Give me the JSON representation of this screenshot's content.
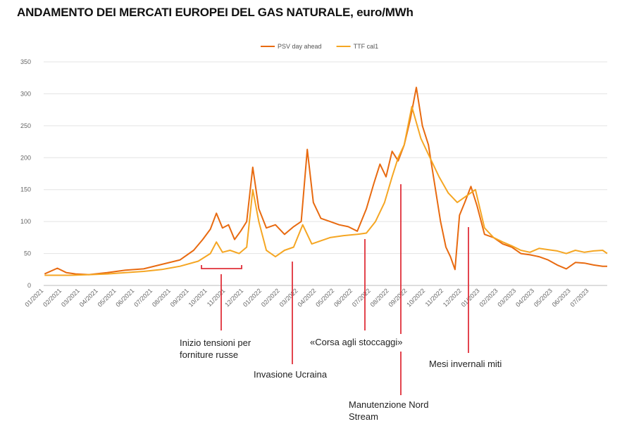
{
  "chart_data": {
    "type": "line",
    "title": "ANDAMENTO DEI MERCATI EUROPEI DEL GAS NATURALE, euro/MWh",
    "xlabel": "",
    "ylabel": "",
    "ylim": [
      0,
      350
    ],
    "yticks": [
      0,
      50,
      100,
      150,
      200,
      250,
      300,
      350
    ],
    "grid": true,
    "legend_position": "top-center",
    "x_categories": [
      "01/2021",
      "02/2021",
      "03/2021",
      "04/2021",
      "05/2021",
      "06/2021",
      "07/2021",
      "08/2021",
      "09/2021",
      "10/2021",
      "11/2021",
      "12/2021",
      "01/2022",
      "02/2022",
      "03/2022",
      "04/2022",
      "05/2022",
      "06/2022",
      "07/2022",
      "08/2022",
      "09/2022",
      "10/2022",
      "11/2022",
      "12/2022",
      "01/2023",
      "02/2023",
      "03/2023",
      "04/2023",
      "05/2023",
      "06/2023",
      "07/2023"
    ],
    "x_range": [
      "01/2021",
      "08/2023"
    ],
    "series": [
      {
        "name": "PSV day ahead",
        "color": "#e86a10",
        "points": [
          [
            "01/2021",
            18
          ],
          [
            "01/2021",
            27
          ],
          [
            "02/2021",
            20
          ],
          [
            "02/2021",
            18
          ],
          [
            "03/2021",
            17
          ],
          [
            "04/2021",
            20
          ],
          [
            "05/2021",
            24
          ],
          [
            "06/2021",
            26
          ],
          [
            "07/2021",
            33
          ],
          [
            "08/2021",
            40
          ],
          [
            "09/2021",
            55
          ],
          [
            "09/2021",
            72
          ],
          [
            "10/2021",
            88
          ],
          [
            "10/2021",
            113
          ],
          [
            "10/2021",
            90
          ],
          [
            "11/2021",
            95
          ],
          [
            "11/2021",
            72
          ],
          [
            "11/2021",
            85
          ],
          [
            "12/2021",
            100
          ],
          [
            "12/2021",
            185
          ],
          [
            "12/2021",
            120
          ],
          [
            "01/2022",
            90
          ],
          [
            "01/2022",
            95
          ],
          [
            "02/2022",
            80
          ],
          [
            "02/2022",
            92
          ],
          [
            "03/2022",
            100
          ],
          [
            "03/2022",
            213
          ],
          [
            "03/2022",
            130
          ],
          [
            "04/2022",
            105
          ],
          [
            "04/2022",
            100
          ],
          [
            "05/2022",
            95
          ],
          [
            "05/2022",
            92
          ],
          [
            "06/2022",
            85
          ],
          [
            "06/2022",
            120
          ],
          [
            "07/2022",
            160
          ],
          [
            "07/2022",
            190
          ],
          [
            "07/2022",
            170
          ],
          [
            "08/2022",
            210
          ],
          [
            "08/2022",
            195
          ],
          [
            "08/2022",
            220
          ],
          [
            "09/2022",
            260
          ],
          [
            "09/2022",
            310
          ],
          [
            "09/2022",
            250
          ],
          [
            "10/2022",
            220
          ],
          [
            "10/2022",
            160
          ],
          [
            "10/2022",
            100
          ],
          [
            "11/2022",
            60
          ],
          [
            "11/2022",
            45
          ],
          [
            "11/2022",
            25
          ],
          [
            "11/2022",
            110
          ],
          [
            "12/2022",
            130
          ],
          [
            "12/2022",
            155
          ],
          [
            "12/2022",
            125
          ],
          [
            "01/2023",
            80
          ],
          [
            "01/2023",
            75
          ],
          [
            "02/2023",
            65
          ],
          [
            "02/2023",
            60
          ],
          [
            "03/2023",
            50
          ],
          [
            "03/2023",
            48
          ],
          [
            "04/2023",
            45
          ],
          [
            "04/2023",
            40
          ],
          [
            "05/2023",
            32
          ],
          [
            "05/2023",
            26
          ],
          [
            "06/2023",
            36
          ],
          [
            "06/2023",
            35
          ],
          [
            "07/2023",
            32
          ],
          [
            "07/2023",
            30
          ],
          [
            "08/2023",
            30
          ]
        ]
      },
      {
        "name": "TTF cal1",
        "color": "#f5a623",
        "points": [
          [
            "01/2021",
            16
          ],
          [
            "02/2021",
            16
          ],
          [
            "03/2021",
            17
          ],
          [
            "04/2021",
            18
          ],
          [
            "05/2021",
            20
          ],
          [
            "06/2021",
            22
          ],
          [
            "07/2021",
            25
          ],
          [
            "08/2021",
            30
          ],
          [
            "09/2021",
            38
          ],
          [
            "10/2021",
            50
          ],
          [
            "10/2021",
            68
          ],
          [
            "10/2021",
            52
          ],
          [
            "11/2021",
            55
          ],
          [
            "11/2021",
            50
          ],
          [
            "12/2021",
            60
          ],
          [
            "12/2021",
            150
          ],
          [
            "12/2021",
            100
          ],
          [
            "01/2022",
            55
          ],
          [
            "01/2022",
            45
          ],
          [
            "02/2022",
            55
          ],
          [
            "02/2022",
            60
          ],
          [
            "03/2022",
            95
          ],
          [
            "03/2022",
            65
          ],
          [
            "04/2022",
            70
          ],
          [
            "04/2022",
            75
          ],
          [
            "05/2022",
            78
          ],
          [
            "06/2022",
            80
          ],
          [
            "06/2022",
            82
          ],
          [
            "07/2022",
            100
          ],
          [
            "07/2022",
            130
          ],
          [
            "08/2022",
            170
          ],
          [
            "08/2022",
            200
          ],
          [
            "08/2022",
            220
          ],
          [
            "09/2022",
            280
          ],
          [
            "09/2022",
            230
          ],
          [
            "10/2022",
            200
          ],
          [
            "10/2022",
            170
          ],
          [
            "11/2022",
            145
          ],
          [
            "11/2022",
            130
          ],
          [
            "12/2022",
            140
          ],
          [
            "12/2022",
            150
          ],
          [
            "01/2023",
            90
          ],
          [
            "01/2023",
            75
          ],
          [
            "02/2023",
            68
          ],
          [
            "02/2023",
            62
          ],
          [
            "03/2023",
            55
          ],
          [
            "03/2023",
            52
          ],
          [
            "04/2023",
            58
          ],
          [
            "04/2023",
            56
          ],
          [
            "05/2023",
            54
          ],
          [
            "05/2023",
            50
          ],
          [
            "06/2023",
            55
          ],
          [
            "06/2023",
            52
          ],
          [
            "07/2023",
            54
          ],
          [
            "07/2023",
            55
          ],
          [
            "08/2023",
            50
          ]
        ]
      }
    ],
    "annotations": [
      {
        "lines": [
          "Inizio tensioni per",
          "forniture russe"
        ],
        "x": "11/2021",
        "bracket_from": "10/2021",
        "bracket_to": "11/2021"
      },
      {
        "lines": [
          "Invasione Ucraina"
        ],
        "x": "03/2022"
      },
      {
        "lines": [
          "«Corsa agli stoccaggi»"
        ],
        "x": "07/2022"
      },
      {
        "lines": [
          "Manutenzione Nord",
          "Stream"
        ],
        "x": "09/2022"
      },
      {
        "lines": [
          "Mesi invernali miti"
        ],
        "x": "12/2022"
      }
    ],
    "annotation_color": "#e0303a"
  }
}
